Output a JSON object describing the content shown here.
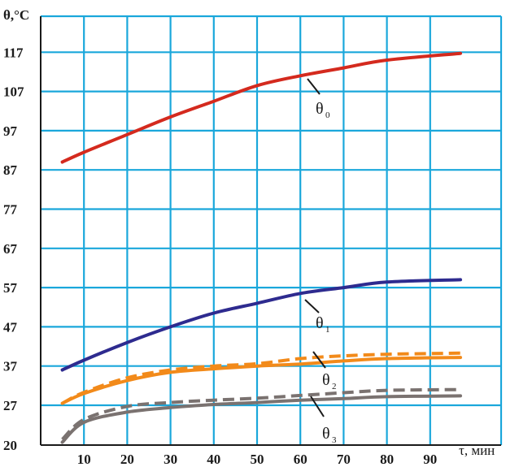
{
  "chart_data": {
    "type": "line",
    "title": "",
    "ylabel": "θ,°C",
    "xlabel": "τ, мин",
    "x_ticks": [
      10,
      20,
      30,
      40,
      50,
      60,
      70,
      80,
      90
    ],
    "y_ticks": [
      20,
      27,
      37,
      47,
      57,
      67,
      77,
      87,
      97,
      107,
      117
    ],
    "xlim": [
      0,
      100
    ],
    "ylim": [
      20,
      121
    ],
    "grid": true,
    "series": [
      {
        "name": "θ0",
        "label_main": "θ",
        "label_sub": "0",
        "color": "#d42a1e",
        "style": "solid",
        "x": [
          5,
          10,
          20,
          30,
          40,
          50,
          60,
          70,
          80,
          97
        ],
        "y": [
          89,
          91.5,
          96,
          100.5,
          104.5,
          108.5,
          111,
          113,
          115,
          116.7
        ]
      },
      {
        "name": "θ1",
        "label_main": "θ",
        "label_sub": "1",
        "color": "#2e2b8f",
        "style": "solid",
        "x": [
          5,
          10,
          20,
          30,
          40,
          50,
          60,
          70,
          80,
          97
        ],
        "y": [
          36,
          38.5,
          43,
          47,
          50.5,
          53,
          55.5,
          57,
          58.4,
          59
        ]
      },
      {
        "name": "θ2",
        "label_main": "θ",
        "label_sub": "2",
        "color": "#f28a1a",
        "style": "solid",
        "x": [
          5,
          10,
          20,
          30,
          40,
          50,
          60,
          70,
          80,
          97
        ],
        "y": [
          27.5,
          30,
          33.3,
          35.4,
          36.3,
          37,
          37.5,
          38.3,
          38.9,
          39.2
        ]
      },
      {
        "name": "θ2 dashed",
        "color": "#f28a1a",
        "style": "dashed",
        "x": [
          5,
          10,
          20,
          30,
          40,
          50,
          60,
          70,
          80,
          97
        ],
        "y": [
          27.5,
          30.3,
          34,
          36,
          37,
          37.6,
          38.9,
          39.6,
          40,
          40.3
        ]
      },
      {
        "name": "θ3",
        "label_main": "θ",
        "label_sub": "3",
        "color": "#7a7270",
        "style": "solid",
        "x": [
          5,
          10,
          20,
          30,
          40,
          50,
          60,
          70,
          80,
          97
        ],
        "y": [
          20.5,
          24,
          25.8,
          26.6,
          27.2,
          27.7,
          28.3,
          28.7,
          29.2,
          29.4
        ]
      },
      {
        "name": "θ3 dashed",
        "color": "#7a7270",
        "style": "dashed",
        "x": [
          5,
          10,
          20,
          30,
          40,
          50,
          60,
          70,
          80,
          97
        ],
        "y": [
          21,
          24.5,
          26.8,
          27.7,
          28.3,
          28.8,
          29.5,
          30.2,
          30.8,
          31
        ]
      }
    ],
    "colors": {
      "grid": "#1aa7db",
      "axis": "#1a1a1a"
    }
  }
}
